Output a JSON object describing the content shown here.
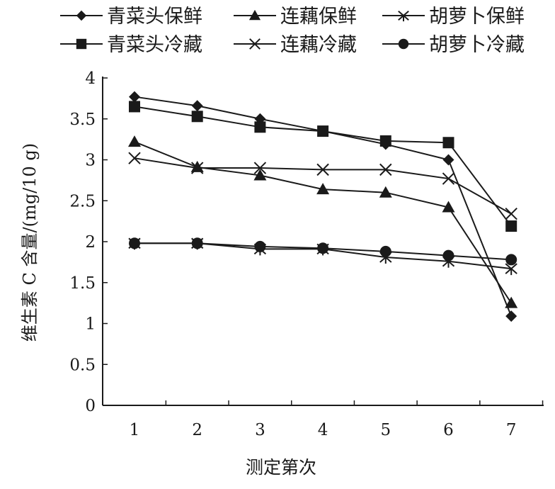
{
  "chart_data": {
    "type": "line",
    "xlabel": "测定第次",
    "ylabel": "维生素 C 含量/(mg/10 g)",
    "categories": [
      "1",
      "2",
      "3",
      "4",
      "5",
      "6",
      "7"
    ],
    "ylim": [
      0,
      4
    ],
    "yticks": [
      "0",
      "0.5",
      "1",
      "1.5",
      "2",
      "2.5",
      "3",
      "3.5",
      "4"
    ],
    "grid": false,
    "legend_position": "top",
    "line_color": "#1a1a1a",
    "series": [
      {
        "name": "青菜头保鲜",
        "marker": "diamond",
        "values": [
          3.77,
          3.66,
          3.5,
          3.35,
          3.19,
          3.0,
          1.09
        ]
      },
      {
        "name": "连藕保鲜",
        "marker": "triangle",
        "values": [
          3.22,
          2.91,
          2.81,
          2.64,
          2.6,
          2.42,
          1.25
        ]
      },
      {
        "name": "胡萝卜保鲜",
        "marker": "asterisk",
        "values": [
          1.98,
          1.98,
          1.91,
          1.91,
          1.81,
          1.76,
          1.67
        ]
      },
      {
        "name": "青菜头冷藏",
        "marker": "square",
        "values": [
          3.65,
          3.53,
          3.4,
          3.35,
          3.23,
          3.21,
          2.19
        ]
      },
      {
        "name": "连藕冷藏",
        "marker": "x",
        "values": [
          3.02,
          2.9,
          2.9,
          2.88,
          2.88,
          2.77,
          2.34
        ]
      },
      {
        "name": "胡萝卜冷藏",
        "marker": "circle",
        "values": [
          1.98,
          1.98,
          1.94,
          1.92,
          1.88,
          1.83,
          1.78
        ]
      }
    ]
  }
}
